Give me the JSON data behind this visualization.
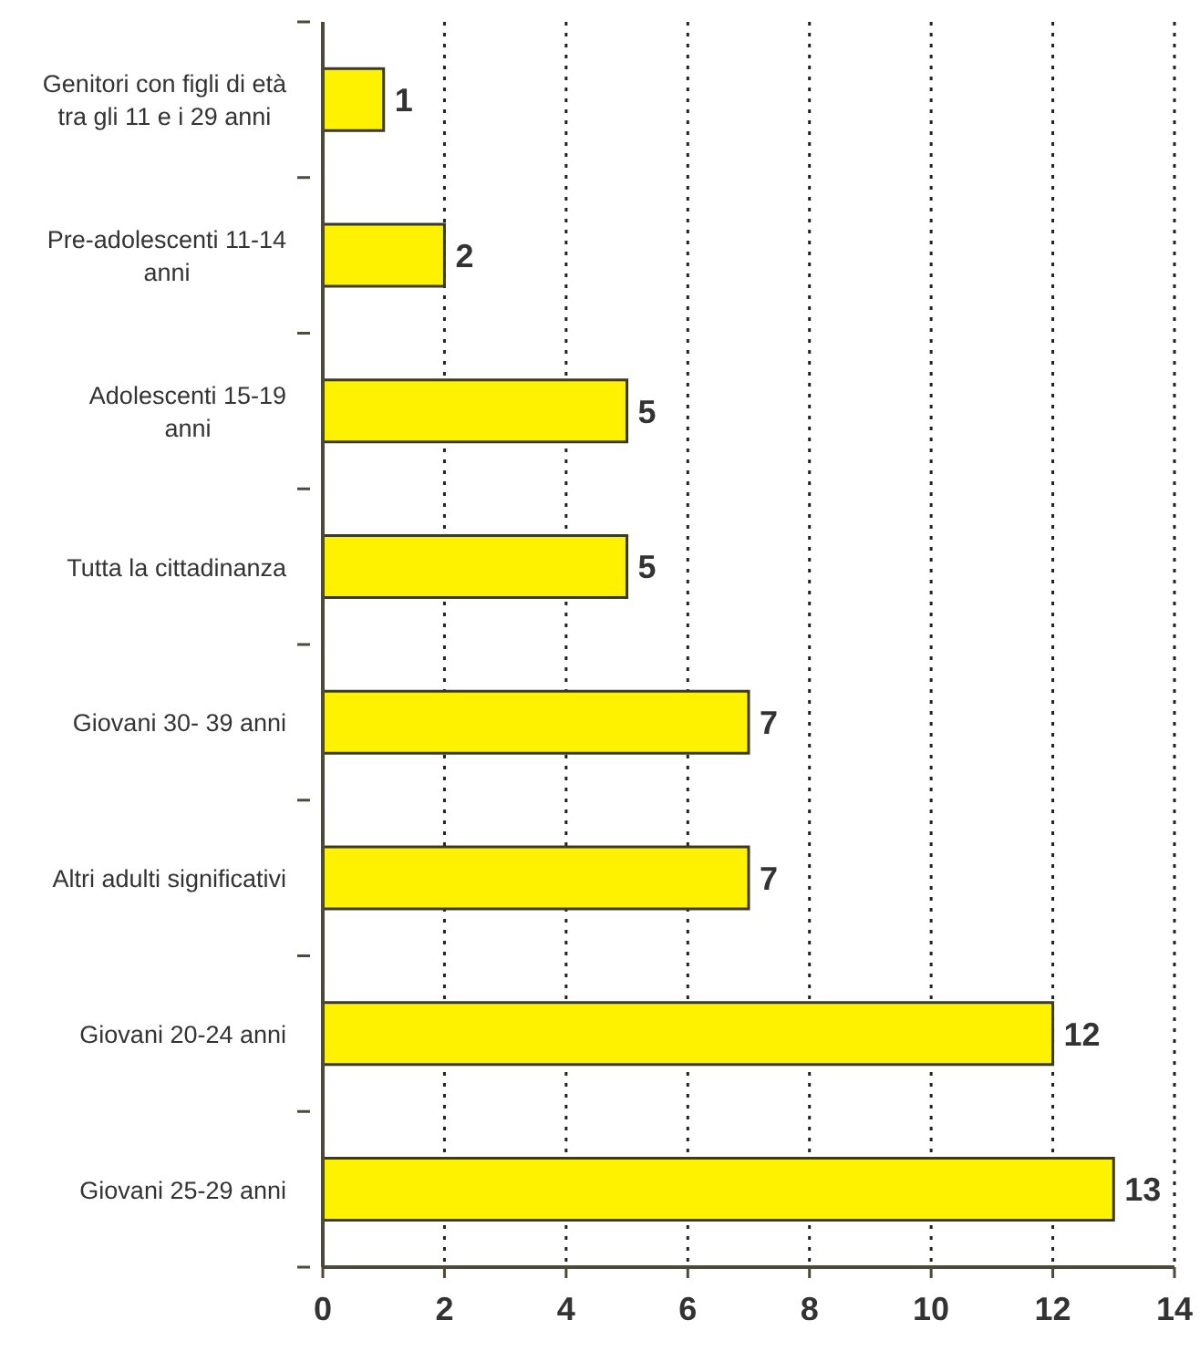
{
  "chart_data": {
    "type": "bar",
    "orientation": "horizontal",
    "categories": [
      "Genitori con figli di età\ntra gli 11 e i 29 anni",
      "Pre-adolescenti 11-14\nanni",
      "Adolescenti 15-19\nanni",
      "Tutta la cittadinanza",
      "Giovani 30- 39 anni",
      "Altri adulti significativi",
      "Giovani 20-24 anni",
      "Giovani 25-29 anni"
    ],
    "values": [
      1,
      2,
      5,
      5,
      7,
      7,
      12,
      13
    ],
    "color": "#fff200",
    "xlim": [
      0,
      14
    ],
    "xticks": [
      0,
      2,
      4,
      6,
      8,
      10,
      12,
      14
    ],
    "grid": "x",
    "data_labels": true
  }
}
